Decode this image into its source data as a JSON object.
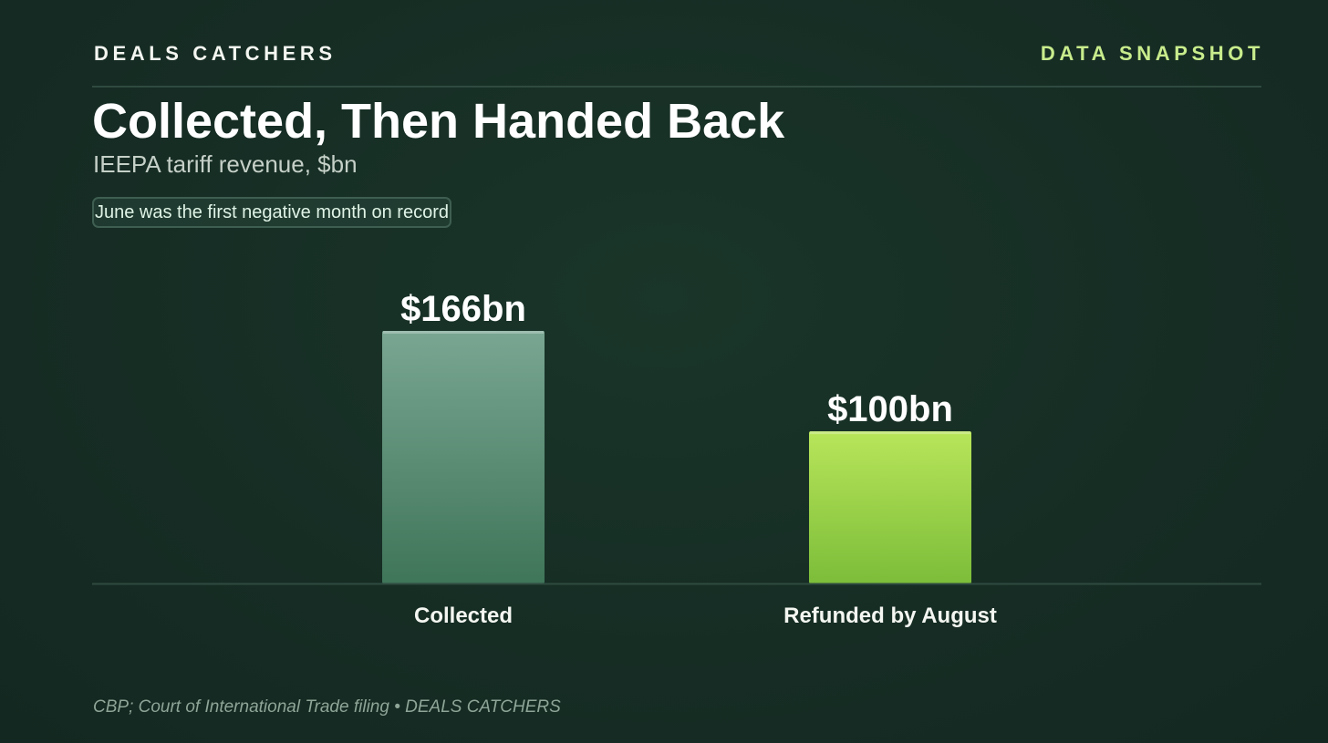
{
  "header": {
    "brand": "DEALS CATCHERS",
    "tag": "DATA SNAPSHOT"
  },
  "title": "Collected, Then Handed Back",
  "subtitle": "IEEPA tariff revenue, $bn",
  "callout": "June was the first negative month on record",
  "source": "CBP; Court of International Trade filing • DEALS CATCHERS",
  "colors": {
    "background": "#17302a",
    "collected_bar": "#4f8a6e",
    "refunded_bar": "#9ad14a",
    "accent": "#c8ec8c"
  },
  "chart_data": {
    "type": "bar",
    "title": "Collected, Then Handed Back",
    "subtitle": "IEEPA tariff revenue, $bn",
    "categories": [
      "Collected",
      "Refunded by August"
    ],
    "values": [
      166,
      100
    ],
    "value_labels": [
      "$166bn",
      "$100bn"
    ],
    "unit": "$bn",
    "ylim": [
      0,
      166
    ],
    "grid": false,
    "legend": "none"
  }
}
